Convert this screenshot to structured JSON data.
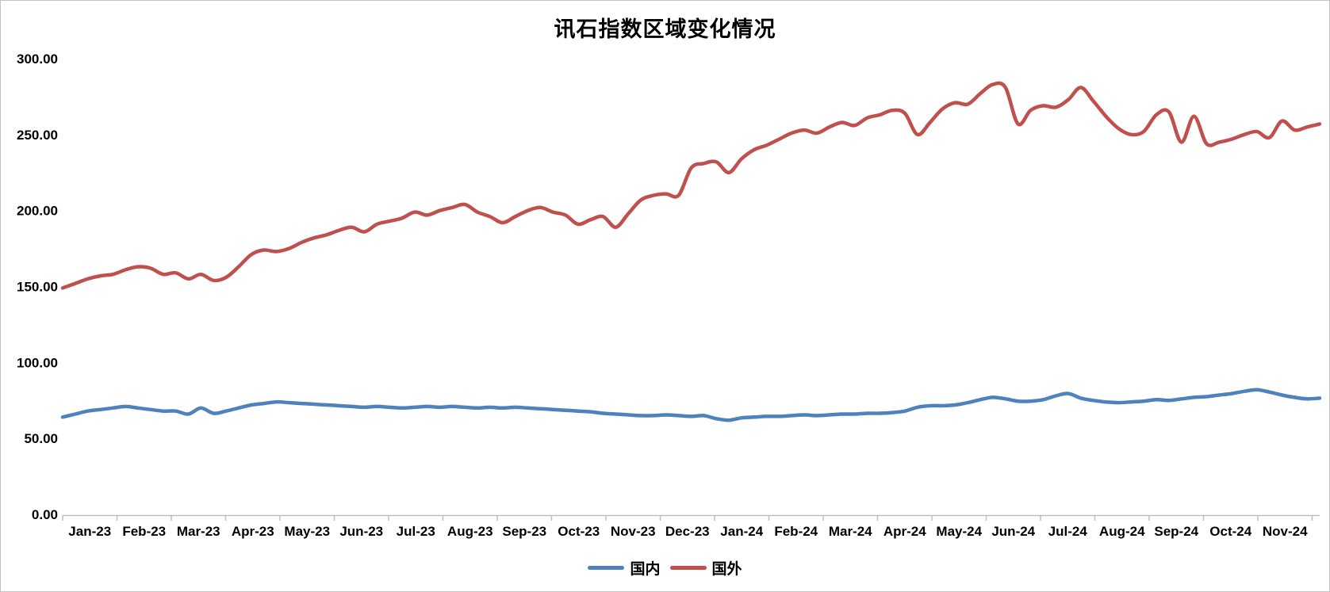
{
  "title": "讯石指数区域变化情况",
  "legend": {
    "items": [
      {
        "label": "国内",
        "color": "#4F81BD"
      },
      {
        "label": "国外",
        "color": "#C0504D"
      }
    ]
  },
  "axis_color": "#BFBFBF",
  "chart_data": {
    "type": "line",
    "title": "讯石指数区域变化情况",
    "xlabel": "",
    "ylabel": "",
    "ylim": [
      0,
      300
    ],
    "grid": false,
    "legend_position": "bottom",
    "y_tick_labels": [
      "0.00",
      "50.00",
      "100.00",
      "150.00",
      "200.00",
      "250.00",
      "300.00"
    ],
    "y_tick_values": [
      0,
      50,
      100,
      150,
      200,
      250,
      300
    ],
    "categories": [
      "Jan-23",
      "Feb-23",
      "Mar-23",
      "Apr-23",
      "May-23",
      "Jun-23",
      "Jul-23",
      "Aug-23",
      "Sep-23",
      "Oct-23",
      "Nov-23",
      "Dec-23",
      "Jan-24",
      "Feb-24",
      "Mar-24",
      "Apr-24",
      "May-24",
      "Jun-24",
      "Jul-24",
      "Aug-24",
      "Sep-24",
      "Oct-24",
      "Nov-24"
    ],
    "x_unit": "weekly samples, Jan-23 through end of Nov-24",
    "series": [
      {
        "name": "国内",
        "color": "#4F81BD",
        "values": [
          64,
          66,
          68,
          69,
          70,
          71,
          70,
          69,
          68,
          68,
          66,
          70,
          66.5,
          68,
          70,
          72,
          73,
          74,
          73.5,
          73,
          72.5,
          72,
          71.5,
          71,
          70.5,
          71,
          70.5,
          70,
          70.5,
          71,
          70.5,
          71,
          70.5,
          70,
          70.5,
          70,
          70.5,
          70,
          69.5,
          69,
          68.5,
          68,
          67.5,
          66.5,
          66,
          65.5,
          65,
          65,
          65.5,
          65,
          64.5,
          65,
          63,
          62,
          63.5,
          64,
          64.5,
          64.5,
          65,
          65.5,
          65,
          65.5,
          66,
          66,
          66.5,
          66.5,
          67,
          68,
          70.5,
          71.5,
          71.5,
          72,
          73.5,
          75.5,
          77,
          76,
          74.5,
          74.5,
          75.5,
          78,
          79.5,
          76.5,
          75,
          74,
          73.5,
          74,
          74.5,
          75.5,
          75,
          76,
          77,
          77.5,
          78.5,
          79.5,
          81,
          82,
          80.5,
          78.5,
          77,
          76,
          76.5
        ]
      },
      {
        "name": "国外",
        "color": "#C0504D",
        "values": [
          149,
          152,
          155,
          157,
          158,
          161,
          163,
          162,
          158,
          159,
          155,
          158,
          154,
          156,
          163,
          171,
          174,
          173,
          175,
          179,
          182,
          184,
          187,
          189,
          186,
          191,
          193,
          195,
          199,
          197,
          200,
          202,
          204,
          199,
          196,
          192,
          196,
          200,
          202,
          199,
          197,
          191,
          194,
          196,
          189,
          198,
          207,
          210,
          211,
          210,
          228,
          231,
          232,
          225,
          234,
          240,
          243,
          247,
          251,
          253,
          251,
          255,
          258,
          256,
          261,
          263,
          266,
          264,
          250,
          258,
          267,
          271,
          270,
          277,
          283,
          281,
          257,
          266,
          269,
          268,
          273,
          281,
          272,
          262,
          254,
          250,
          252,
          263,
          265,
          245,
          262,
          244,
          245,
          247,
          250,
          252,
          248,
          259,
          253,
          255,
          257
        ]
      }
    ]
  }
}
